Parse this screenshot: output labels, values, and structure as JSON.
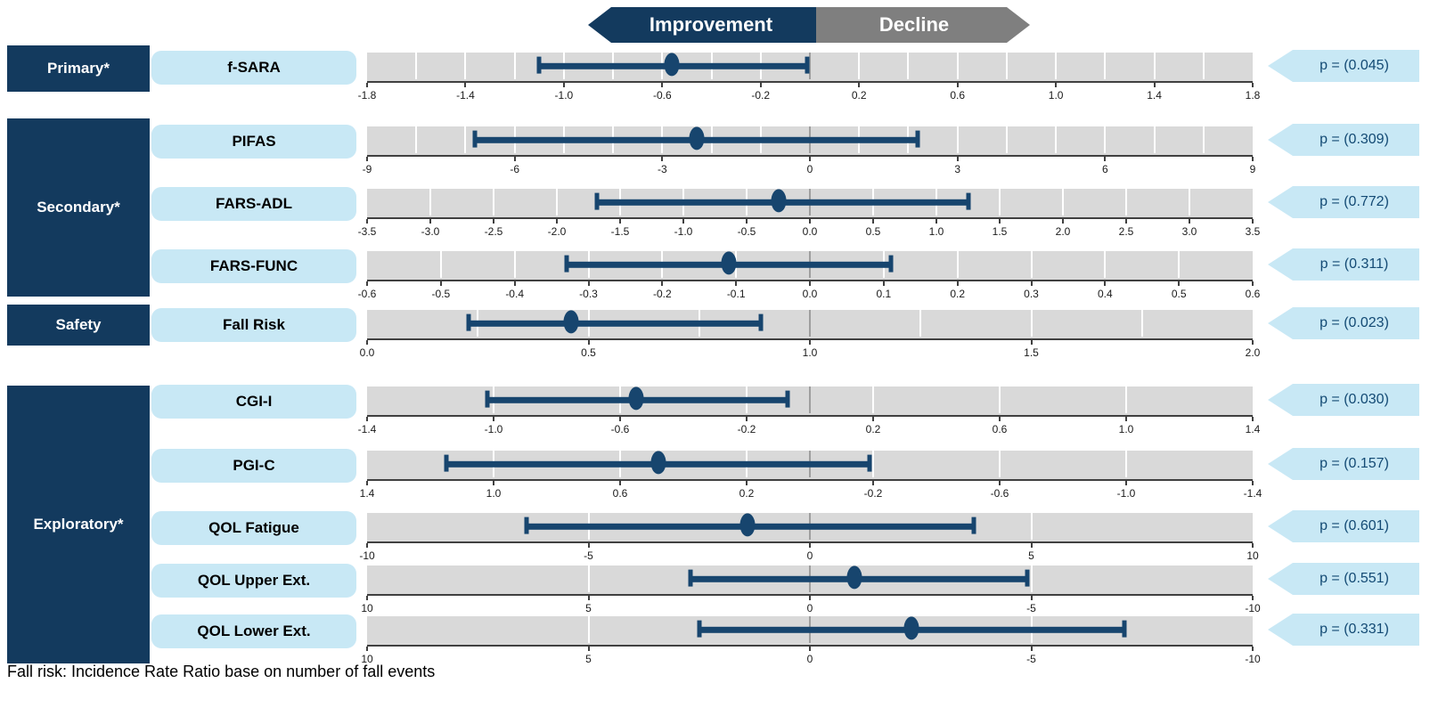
{
  "banner": {
    "improvement_label": "Improvement",
    "decline_label": "Decline"
  },
  "footnote": "Fall risk: Incidence Rate Ratio base on number of fall events",
  "colors": {
    "navy_box": "#133A5E",
    "marker_navy": "#17456E",
    "light_blue": "#C8E8F5",
    "decline_gray": "#7F7F7F",
    "plot_background": "#D9D9D9",
    "reference_line": "#9E9E9E"
  },
  "categories": [
    {
      "label": "Primary*"
    },
    {
      "label": "Secondary*"
    },
    {
      "label": "Safety"
    },
    {
      "label": "Exploratory*"
    }
  ],
  "chart_data": {
    "type": "scatter",
    "subtype": "forest-plot-dot-with-ci",
    "legend": {
      "left_direction": "Improvement",
      "right_direction": "Decline"
    },
    "rows": [
      {
        "measure": "f-SARA",
        "category_index": 0,
        "estimate": -0.56,
        "ci": [
          -1.1,
          -0.01
        ],
        "p_label": "p = (0.045)",
        "p_value": 0.045,
        "axis": {
          "start": -1.8,
          "end": 1.8,
          "reference": 0,
          "minor_per_major": 2,
          "tick_labels": [
            "-1.8",
            "-1.4",
            "-1.0",
            "-0.6",
            "-0.2",
            "0.2",
            "0.6",
            "1.0",
            "1.4",
            "1.8"
          ]
        }
      },
      {
        "measure": "PIFAS",
        "category_index": 1,
        "estimate": -2.3,
        "ci": [
          -6.8,
          2.2
        ],
        "p_label": "p = (0.309)",
        "p_value": 0.309,
        "axis": {
          "start": -9,
          "end": 9,
          "reference": 0,
          "minor_per_major": 3,
          "tick_labels": [
            "-9",
            "-6",
            "-3",
            "0",
            "3",
            "6",
            "9"
          ]
        }
      },
      {
        "measure": "FARS-ADL",
        "category_index": 1,
        "estimate": -0.25,
        "ci": [
          -1.68,
          1.25
        ],
        "p_label": "p = (0.772)",
        "p_value": 0.772,
        "axis": {
          "start": -3.5,
          "end": 3.5,
          "reference": 0,
          "minor_per_major": 1,
          "tick_labels": [
            "-3.5",
            "-3.0",
            "-2.5",
            "-2.0",
            "-1.5",
            "-1.0",
            "-0.5",
            "0.0",
            "0.5",
            "1.0",
            "1.5",
            "2.0",
            "2.5",
            "3.0",
            "3.5"
          ]
        }
      },
      {
        "measure": "FARS-FUNC",
        "category_index": 1,
        "estimate": -0.11,
        "ci": [
          -0.33,
          0.11
        ],
        "p_label": "p = (0.311)",
        "p_value": 0.311,
        "axis": {
          "start": -0.6,
          "end": 0.6,
          "reference": 0,
          "minor_per_major": 1,
          "tick_labels": [
            "-0.6",
            "-0.5",
            "-0.4",
            "-0.3",
            "-0.2",
            "-0.1",
            "0.0",
            "0.1",
            "0.2",
            "0.3",
            "0.4",
            "0.5",
            "0.6"
          ]
        }
      },
      {
        "measure": "Fall Risk",
        "category_index": 2,
        "estimate": 0.46,
        "ci": [
          0.23,
          0.89
        ],
        "p_label": "p = (0.023)",
        "p_value": 0.023,
        "axis": {
          "start": 0.0,
          "end": 2.0,
          "reference": 1.0,
          "minor_per_major": 2,
          "tick_labels": [
            "0.0",
            "0.5",
            "1.0",
            "1.5",
            "2.0"
          ]
        }
      },
      {
        "measure": "CGI-I",
        "category_index": 3,
        "estimate": -0.55,
        "ci": [
          -1.02,
          -0.07
        ],
        "p_label": "p = (0.030)",
        "p_value": 0.03,
        "axis": {
          "start": -1.4,
          "end": 1.4,
          "reference": 0,
          "minor_per_major": 1,
          "tick_labels": [
            "-1.4",
            "-1.0",
            "-0.6",
            "-0.2",
            "0.2",
            "0.6",
            "1.0",
            "1.4"
          ]
        }
      },
      {
        "measure": "PGI-C",
        "category_index": 3,
        "estimate": 0.48,
        "ci": [
          -0.19,
          1.15
        ],
        "p_label": "p = (0.157)",
        "p_value": 0.157,
        "axis": {
          "start": 1.4,
          "end": -1.4,
          "reference": 0,
          "minor_per_major": 1,
          "tick_labels": [
            "1.4",
            "1.0",
            "0.6",
            "0.2",
            "-0.2",
            "-0.6",
            "-1.0",
            "-1.4"
          ]
        }
      },
      {
        "measure": "QOL Fatigue",
        "category_index": 3,
        "estimate": -1.4,
        "ci": [
          -6.4,
          3.7
        ],
        "p_label": "p = (0.601)",
        "p_value": 0.601,
        "axis": {
          "start": -10,
          "end": 10,
          "reference": 0,
          "minor_per_major": 1,
          "tick_labels": [
            "-10",
            "-5",
            "0",
            "5",
            "10"
          ]
        }
      },
      {
        "measure": "QOL Upper Ext.",
        "category_index": 3,
        "estimate": -1.0,
        "ci": [
          -4.9,
          2.7
        ],
        "p_label": "p = (0.551)",
        "p_value": 0.551,
        "axis": {
          "start": 10,
          "end": -10,
          "reference": 0,
          "minor_per_major": 1,
          "tick_labels": [
            "10",
            "5",
            "0",
            "-5",
            "-10"
          ]
        }
      },
      {
        "measure": "QOL Lower Ext.",
        "category_index": 3,
        "estimate": -2.3,
        "ci": [
          -7.1,
          2.5
        ],
        "p_label": "p = (0.331)",
        "p_value": 0.331,
        "axis": {
          "start": 10,
          "end": -10,
          "reference": 0,
          "minor_per_major": 1,
          "tick_labels": [
            "10",
            "5",
            "0",
            "-5",
            "-10"
          ]
        }
      }
    ]
  }
}
